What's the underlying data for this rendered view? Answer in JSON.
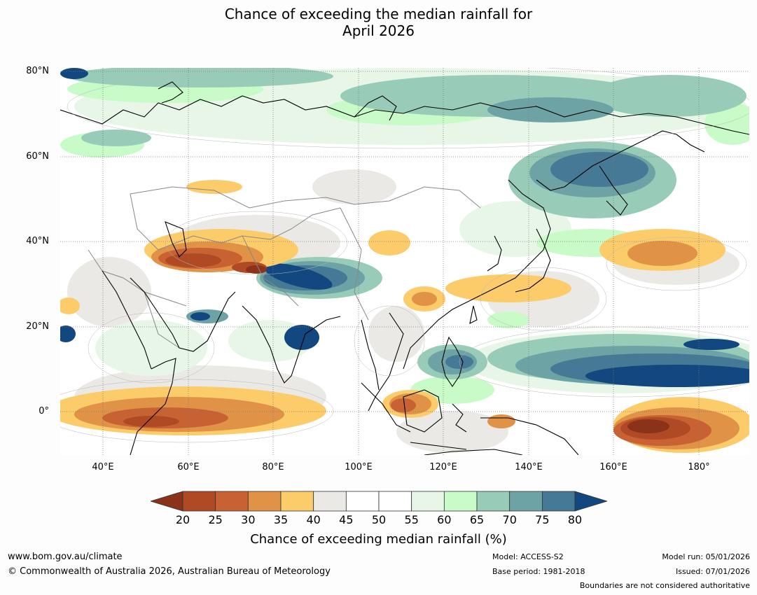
{
  "title": {
    "line1": "Chance of exceeding the median rainfall for",
    "line2": "April 2026"
  },
  "map": {
    "lat_labels": [
      "80°N",
      "60°N",
      "40°N",
      "20°N",
      "0°"
    ],
    "lon_labels": [
      "40°E",
      "60°E",
      "80°E",
      "100°E",
      "120°E",
      "140°E",
      "160°E",
      "180°"
    ],
    "colors": {
      "c20": "#8b321a",
      "c25": "#b04a25",
      "c30": "#c86233",
      "c35": "#e09247",
      "c40": "#fccb6a",
      "c45": "#ebe9e5",
      "c50": "#ffffff",
      "c55": "#ffffff",
      "c60": "#e8f6e8",
      "c65": "#c8fbc8",
      "c70": "#99ccb8",
      "c75": "#6ea3a5",
      "c80": "#457996",
      "c85": "#12487f"
    }
  },
  "colorbar": {
    "ticks": [
      "20",
      "25",
      "30",
      "35",
      "40",
      "45",
      "50",
      "55",
      "60",
      "65",
      "70",
      "75",
      "80"
    ],
    "segment_colors": [
      "#b04a25",
      "#c86233",
      "#e09247",
      "#fccb6a",
      "#ebe9e5",
      "#ffffff",
      "#ffffff",
      "#e8f6e8",
      "#c8fbc8",
      "#99ccb8",
      "#6ea3a5",
      "#457996"
    ],
    "low_extend_color": "#8b321a",
    "high_extend_color": "#12487f",
    "caption": "Chance of exceeding median rainfall (%)"
  },
  "footer": {
    "website": "www.bom.gov.au/climate",
    "copyright": "© Commonwealth of Australia 2026, Australian Bureau of Meteorology",
    "model": "Model: ACCESS-S2",
    "base_period": "Base period: 1981-2018",
    "model_run": "Model run: 05/01/2026",
    "issued": "Issued: 07/01/2026",
    "disclaimer": "Boundaries are not considered authoritative"
  }
}
